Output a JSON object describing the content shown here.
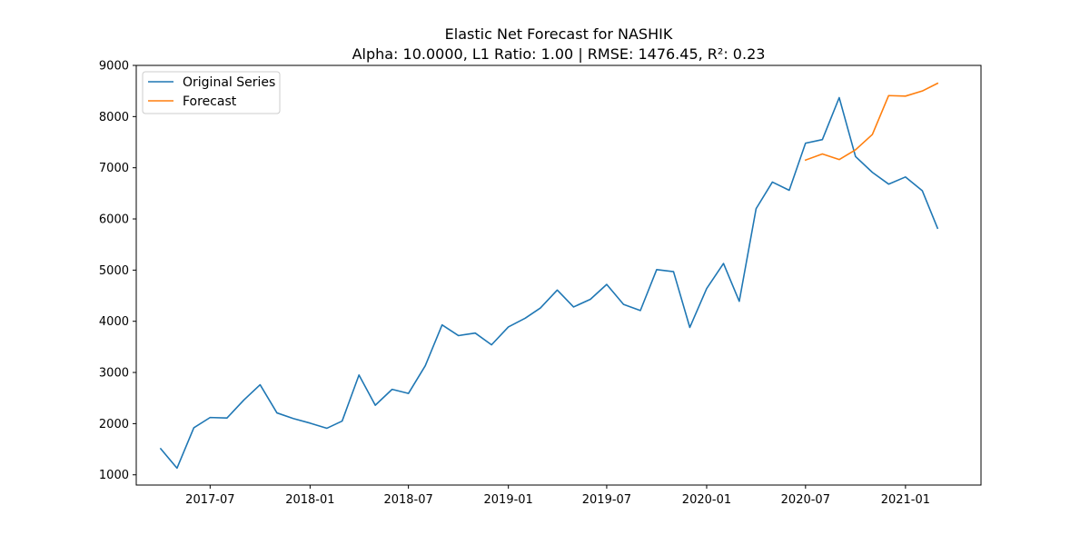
{
  "chart_data": {
    "type": "line",
    "title": "Elastic Net Forecast for NASHIK",
    "subtitle": "Alpha: 10.0000, L1 Ratio: 1.00 | RMSE: 1476.45, R²: 0.23",
    "xlabel": "",
    "ylabel": "",
    "ylim": [
      800,
      9000
    ],
    "xlim": [
      "2017-02-15",
      "2021-05-20"
    ],
    "yticks": [
      1000,
      2000,
      3000,
      4000,
      5000,
      6000,
      7000,
      8000,
      9000
    ],
    "xticks": [
      {
        "date": "2017-07-01",
        "label": "2017-07"
      },
      {
        "date": "2018-01-01",
        "label": "2018-01"
      },
      {
        "date": "2018-07-01",
        "label": "2018-07"
      },
      {
        "date": "2019-01-01",
        "label": "2019-01"
      },
      {
        "date": "2019-07-01",
        "label": "2019-07"
      },
      {
        "date": "2020-01-01",
        "label": "2020-01"
      },
      {
        "date": "2020-07-01",
        "label": "2020-07"
      },
      {
        "date": "2021-01-01",
        "label": "2021-01"
      }
    ],
    "grid": false,
    "legend_position": "top-left",
    "series": [
      {
        "name": "Original Series",
        "color": "#1f77b4",
        "x": [
          "2017-04-01",
          "2017-05-01",
          "2017-06-01",
          "2017-07-01",
          "2017-08-01",
          "2017-09-01",
          "2017-10-01",
          "2017-11-01",
          "2017-12-01",
          "2018-01-01",
          "2018-02-01",
          "2018-03-01",
          "2018-04-01",
          "2018-05-01",
          "2018-06-01",
          "2018-07-01",
          "2018-08-01",
          "2018-09-01",
          "2018-10-01",
          "2018-11-01",
          "2018-12-01",
          "2019-01-01",
          "2019-02-01",
          "2019-03-01",
          "2019-04-01",
          "2019-05-01",
          "2019-06-01",
          "2019-07-01",
          "2019-08-01",
          "2019-09-01",
          "2019-10-01",
          "2019-11-01",
          "2019-12-01",
          "2020-01-01",
          "2020-02-01",
          "2020-03-01",
          "2020-04-01",
          "2020-05-01",
          "2020-06-01",
          "2020-07-01",
          "2020-08-01",
          "2020-09-01",
          "2020-10-01",
          "2020-11-01",
          "2020-12-01",
          "2021-01-01",
          "2021-02-01",
          "2021-03-01"
        ],
        "values": [
          1510,
          1130,
          1920,
          2120,
          2110,
          2460,
          2760,
          2210,
          2100,
          2010,
          1910,
          2050,
          2950,
          2360,
          2670,
          2590,
          3130,
          3930,
          3720,
          3770,
          3540,
          3890,
          4060,
          4260,
          4610,
          4280,
          4430,
          4720,
          4330,
          4210,
          5010,
          4970,
          3880,
          4640,
          5130,
          4390,
          6200,
          6720,
          6560,
          7480,
          7550,
          8370,
          7220,
          6910,
          6680,
          6820,
          6550,
          5820
        ]
      },
      {
        "name": "Forecast",
        "color": "#ff7f0e",
        "x": [
          "2020-07-01",
          "2020-08-01",
          "2020-09-01",
          "2020-10-01",
          "2020-11-01",
          "2020-12-01",
          "2021-01-01",
          "2021-02-01",
          "2021-03-01"
        ],
        "values": [
          7150,
          7270,
          7160,
          7350,
          7650,
          8410,
          8400,
          8500,
          8650
        ]
      }
    ]
  }
}
